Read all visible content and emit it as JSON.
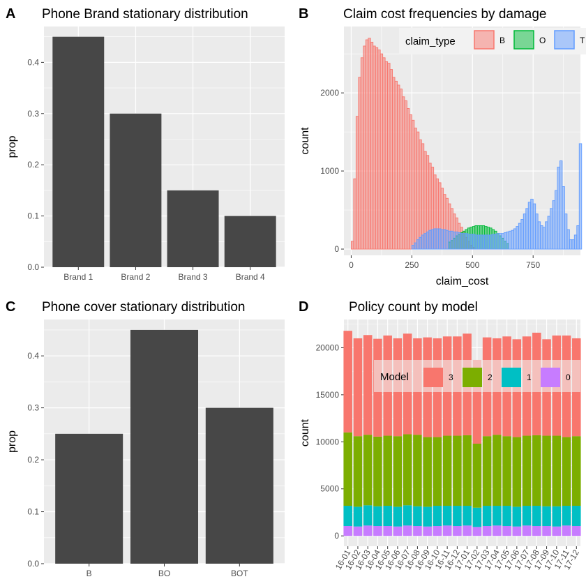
{
  "chart_data": [
    {
      "panel": "A",
      "type": "bar",
      "title": "Phone Brand stationary distribution",
      "xlabel": "",
      "ylabel": "prop",
      "categories": [
        "Brand 1",
        "Brand 2",
        "Brand 3",
        "Brand 4"
      ],
      "values": [
        0.45,
        0.3,
        0.15,
        0.1
      ],
      "ylim": [
        0,
        0.47
      ],
      "yticks": [
        "0.0",
        "0.1",
        "0.2",
        "0.3",
        "0.4"
      ],
      "bar_color": "#474747",
      "grid": true
    },
    {
      "panel": "B",
      "type": "histogram",
      "title": "Claim cost frequencies by damage",
      "xlabel": "claim_cost",
      "ylabel": "count",
      "xlim": [
        -30,
        945
      ],
      "ylim": [
        -80,
        2850
      ],
      "xticks": [
        0,
        250,
        500,
        750
      ],
      "yticks": [
        0,
        1000,
        2000
      ],
      "bin_width": 10,
      "legend": {
        "title": "claim_type",
        "position": "top-right"
      },
      "series": [
        {
          "name": "B",
          "color": "#F8766D",
          "bin_start": 0,
          "values": [
            100,
            900,
            1700,
            2200,
            2450,
            2600,
            2680,
            2700,
            2650,
            2600,
            2580,
            2550,
            2500,
            2450,
            2400,
            2380,
            2300,
            2200,
            2150,
            2100,
            2050,
            1950,
            1900,
            1800,
            1720,
            1650,
            1550,
            1500,
            1400,
            1350,
            1250,
            1200,
            1100,
            1050,
            950,
            900,
            850,
            780,
            700,
            650,
            580,
            520,
            450,
            400,
            330,
            280,
            220,
            150,
            100,
            50,
            20
          ]
        },
        {
          "name": "O",
          "color": "#00BA38",
          "bin_start": 400,
          "values": [
            90,
            110,
            140,
            170,
            190,
            210,
            230,
            250,
            270,
            280,
            290,
            300,
            300,
            300,
            300,
            290,
            280,
            270,
            250,
            230,
            200,
            170,
            140,
            100,
            70
          ]
        },
        {
          "name": "T",
          "color": "#619CFF",
          "bin_start": 250,
          "values": [
            50,
            80,
            120,
            150,
            180,
            200,
            220,
            240,
            250,
            260,
            260,
            260,
            250,
            250,
            240,
            230,
            230,
            220,
            220,
            210,
            200,
            200,
            200,
            190,
            190,
            190,
            180,
            180,
            180,
            180,
            180,
            180,
            180,
            190,
            190,
            200,
            200,
            200,
            210,
            220,
            230,
            240,
            260,
            290,
            330,
            380,
            450,
            520,
            600,
            640,
            580,
            450,
            350,
            300,
            280,
            350,
            420,
            520,
            620,
            750,
            1050,
            1130,
            800,
            450,
            250,
            120,
            120,
            180,
            300,
            1350
          ]
        }
      ]
    },
    {
      "panel": "C",
      "type": "bar",
      "title": "Phone cover stationary distribution",
      "xlabel": "",
      "ylabel": "prop",
      "categories": [
        "B",
        "BO",
        "BOT"
      ],
      "values": [
        0.25,
        0.45,
        0.3
      ],
      "ylim": [
        0,
        0.47
      ],
      "yticks": [
        "0.0",
        "0.1",
        "0.2",
        "0.3",
        "0.4"
      ],
      "bar_color": "#474747",
      "grid": true
    },
    {
      "panel": "D",
      "type": "stacked_bar",
      "title": "Policy count by model",
      "xlabel": "",
      "ylabel": "count",
      "categories": [
        "16-01",
        "16-02",
        "16-03",
        "16-04",
        "16-05",
        "16-06",
        "16-07",
        "16-08",
        "16-09",
        "16-10",
        "16-11",
        "16-12",
        "17-01",
        "17-02",
        "17-03",
        "17-04",
        "17-05",
        "17-06",
        "17-07",
        "17-08",
        "17-09",
        "17-10",
        "17-11",
        "17-12"
      ],
      "ylim": [
        -1100,
        23000
      ],
      "yticks": [
        0,
        5000,
        10000,
        15000,
        20000
      ],
      "legend": {
        "title": "Model",
        "position": "top-right",
        "order": [
          "3",
          "2",
          "1",
          "0"
        ]
      },
      "series": [
        {
          "name": "0",
          "color": "#C77CFF",
          "values": [
            1050,
            1000,
            1100,
            1050,
            1050,
            1000,
            1100,
            1050,
            1000,
            1050,
            1100,
            1050,
            1100,
            950,
            1050,
            1100,
            1050,
            1000,
            1100,
            1050,
            1050,
            1000,
            1100,
            1050
          ]
        },
        {
          "name": "1",
          "color": "#00BFC4",
          "values": [
            2150,
            2100,
            2150,
            2100,
            2150,
            2100,
            2150,
            2100,
            2100,
            2150,
            2100,
            2150,
            2100,
            2050,
            2150,
            2100,
            2150,
            2100,
            2100,
            2150,
            2100,
            2150,
            2100,
            2150
          ]
        },
        {
          "name": "2",
          "color": "#7CAE00",
          "values": [
            7800,
            7500,
            7500,
            7400,
            7450,
            7500,
            7550,
            7600,
            7400,
            7300,
            7450,
            7450,
            7500,
            6800,
            7400,
            7550,
            7400,
            7400,
            7450,
            7500,
            7500,
            7500,
            7300,
            7400
          ]
        },
        {
          "name": "3",
          "color": "#F8766D",
          "values": [
            10800,
            10400,
            10600,
            10400,
            10650,
            10400,
            10700,
            10250,
            10600,
            10500,
            10550,
            10550,
            10800,
            8900,
            10500,
            10250,
            10600,
            10400,
            10550,
            10900,
            10250,
            10650,
            10800,
            10400
          ]
        }
      ]
    }
  ]
}
